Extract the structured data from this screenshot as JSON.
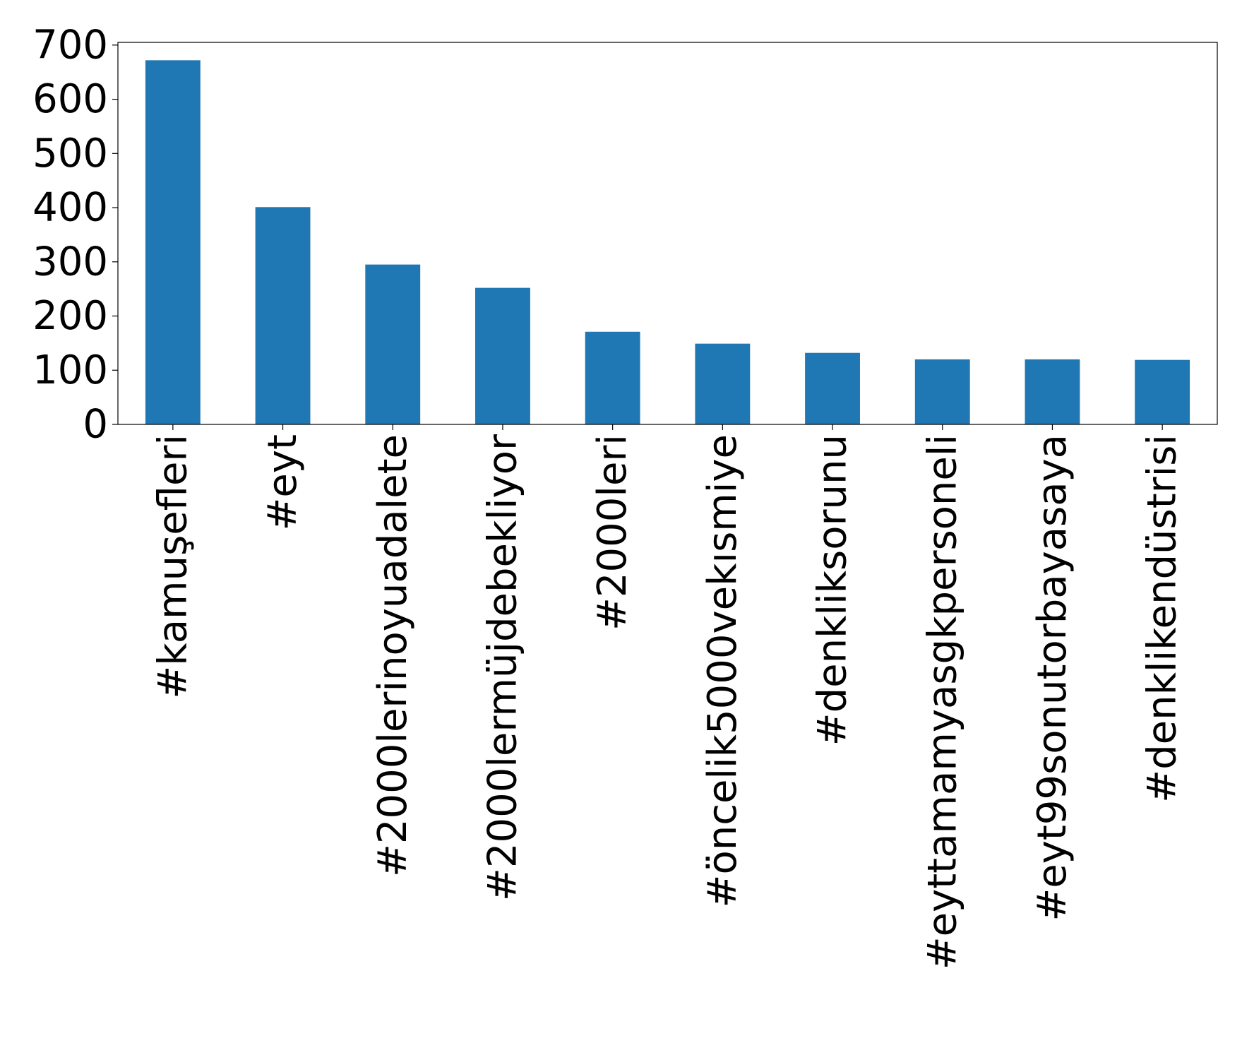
{
  "chart_data": {
    "type": "bar",
    "title": "",
    "xlabel": "",
    "ylabel": "",
    "categories": [
      "#kamuşefleri",
      "#eyt",
      "#2000lerinoyuadalete",
      "#2000lermüjdebekliyor",
      "#2000leri",
      "#öncelik5000vekısmiye",
      "#denkliksorunu",
      "#eyttamamyasgkpersoneli",
      "#eyt99sonutorbayasaya",
      "#denklikendüstrisi"
    ],
    "values": [
      672,
      401,
      295,
      252,
      171,
      149,
      132,
      120,
      120,
      119
    ],
    "ylim": [
      0,
      705
    ],
    "yticks": [
      0,
      100,
      200,
      300,
      400,
      500,
      600,
      700
    ],
    "bar_color": "#1f77b4",
    "grid": false,
    "legend": "none"
  }
}
